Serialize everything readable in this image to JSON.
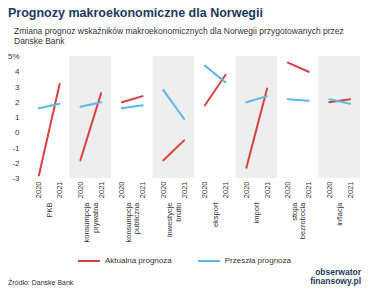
{
  "chart_data": {
    "type": "line",
    "title": "Prognozy makroekonomiczne dla Norwegii",
    "subtitle": "Zmiana prognoz wskaźników makroekonomicznych dla Norwegii przygotowanych przez Danske Bank",
    "source": "Źródło: Danske Bank",
    "logo": "obserwator finansowy.pl",
    "categories": [
      "PKB",
      "konsumpcja prywatna",
      "konsumpcja publiczna",
      "inwestycje brutto",
      "eksport",
      "import",
      "stopa bezrobocia",
      "inflacja"
    ],
    "x": [
      "2020",
      "2021"
    ],
    "series": [
      {
        "name": "Aktualna prognoza",
        "color": "#d8423f",
        "values": [
          [
            -2.8,
            3.2
          ],
          [
            -1.8,
            2.6
          ],
          [
            2.0,
            2.4
          ],
          [
            -1.8,
            -0.5
          ],
          [
            1.8,
            3.8
          ],
          [
            -2.3,
            2.9
          ],
          [
            4.6,
            4.0
          ],
          [
            2.0,
            2.2
          ]
        ]
      },
      {
        "name": "Przeszła prognoza",
        "color": "#5cb9e2",
        "values": [
          [
            1.6,
            1.9
          ],
          [
            1.7,
            2.0
          ],
          [
            1.6,
            1.8
          ],
          [
            2.8,
            0.9
          ],
          [
            4.4,
            3.3
          ],
          [
            2.0,
            2.4
          ],
          [
            2.2,
            2.1
          ],
          [
            2.2,
            1.9
          ]
        ]
      }
    ],
    "ylim": [
      -3,
      5
    ],
    "yticks": [
      -3,
      -2,
      -1,
      0,
      1,
      2,
      3,
      4,
      {
        "value": 5,
        "label": "5%"
      }
    ],
    "grid": false,
    "legend": "bottom"
  }
}
